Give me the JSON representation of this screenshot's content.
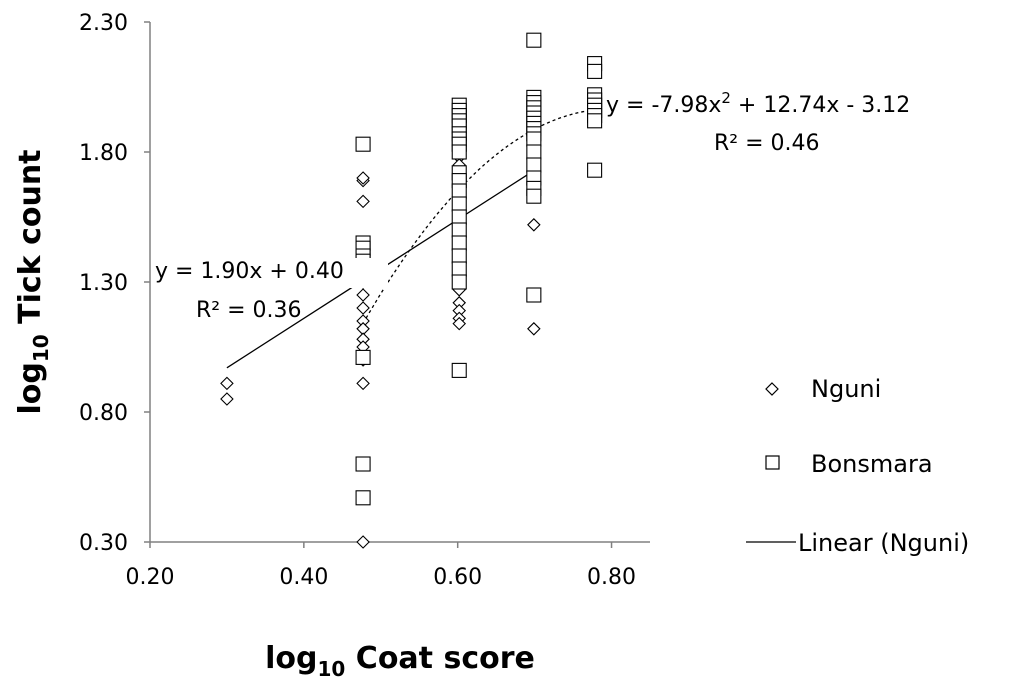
{
  "chart_data": {
    "type": "scatter",
    "title": "",
    "xlabel": {
      "base": "log",
      "sub": "10",
      "rest": " Coat score"
    },
    "ylabel": {
      "base": "log",
      "sub": "10",
      "rest": " Tick count"
    },
    "xlim": [
      0.2,
      0.85
    ],
    "ylim": [
      0.3,
      2.3
    ],
    "x_ticks": [
      "0.20",
      "0.40",
      "0.60",
      "0.80"
    ],
    "y_ticks": [
      "0.30",
      "0.80",
      "1.30",
      "1.80",
      "2.30"
    ],
    "legend_position": "right",
    "series": [
      {
        "name": "Nguni",
        "marker": "diamond",
        "points": [
          [
            0.3,
            0.91
          ],
          [
            0.3,
            0.85
          ],
          [
            0.477,
            1.69
          ],
          [
            0.477,
            1.7
          ],
          [
            0.477,
            1.61
          ],
          [
            0.477,
            1.42
          ],
          [
            0.477,
            1.4
          ],
          [
            0.477,
            1.38
          ],
          [
            0.477,
            1.36
          ],
          [
            0.477,
            1.35
          ],
          [
            0.477,
            1.34
          ],
          [
            0.477,
            1.33
          ],
          [
            0.477,
            1.32
          ],
          [
            0.477,
            1.3
          ],
          [
            0.477,
            1.25
          ],
          [
            0.477,
            1.2
          ],
          [
            0.477,
            1.15
          ],
          [
            0.477,
            1.12
          ],
          [
            0.477,
            1.08
          ],
          [
            0.477,
            1.05
          ],
          [
            0.477,
            1.0
          ],
          [
            0.477,
            0.91
          ],
          [
            0.477,
            0.3
          ],
          [
            0.602,
            1.78
          ],
          [
            0.602,
            1.75
          ],
          [
            0.602,
            1.72
          ],
          [
            0.602,
            1.7
          ],
          [
            0.602,
            1.66
          ],
          [
            0.602,
            1.62
          ],
          [
            0.602,
            1.58
          ],
          [
            0.602,
            1.56
          ],
          [
            0.602,
            1.52
          ],
          [
            0.602,
            1.48
          ],
          [
            0.602,
            1.45
          ],
          [
            0.602,
            1.42
          ],
          [
            0.602,
            1.38
          ],
          [
            0.602,
            1.35
          ],
          [
            0.602,
            1.3
          ],
          [
            0.602,
            1.27
          ],
          [
            0.602,
            1.22
          ],
          [
            0.602,
            1.19
          ],
          [
            0.602,
            1.16
          ],
          [
            0.602,
            1.14
          ],
          [
            0.699,
            1.85
          ],
          [
            0.699,
            1.8
          ],
          [
            0.699,
            1.77
          ],
          [
            0.699,
            1.75
          ],
          [
            0.699,
            1.72
          ],
          [
            0.699,
            1.7
          ],
          [
            0.699,
            1.67
          ],
          [
            0.699,
            1.52
          ],
          [
            0.699,
            1.12
          ]
        ]
      },
      {
        "name": "Bonsmara",
        "marker": "square",
        "points": [
          [
            0.477,
            1.83
          ],
          [
            0.477,
            1.45
          ],
          [
            0.477,
            1.43
          ],
          [
            0.477,
            1.4
          ],
          [
            0.477,
            1.38
          ],
          [
            0.477,
            1.01
          ],
          [
            0.477,
            0.6
          ],
          [
            0.477,
            0.47
          ],
          [
            0.602,
            1.98
          ],
          [
            0.602,
            1.96
          ],
          [
            0.602,
            1.94
          ],
          [
            0.602,
            1.92
          ],
          [
            0.602,
            1.9
          ],
          [
            0.602,
            1.87
          ],
          [
            0.602,
            1.85
          ],
          [
            0.602,
            1.83
          ],
          [
            0.602,
            1.8
          ],
          [
            0.602,
            1.72
          ],
          [
            0.602,
            1.69
          ],
          [
            0.602,
            1.65
          ],
          [
            0.602,
            1.6
          ],
          [
            0.602,
            1.55
          ],
          [
            0.602,
            1.5
          ],
          [
            0.602,
            1.45
          ],
          [
            0.602,
            1.4
          ],
          [
            0.602,
            1.35
          ],
          [
            0.602,
            1.3
          ],
          [
            0.602,
            0.96
          ],
          [
            0.699,
            2.23
          ],
          [
            0.699,
            2.01
          ],
          [
            0.699,
            1.99
          ],
          [
            0.699,
            1.97
          ],
          [
            0.699,
            1.95
          ],
          [
            0.699,
            1.93
          ],
          [
            0.699,
            1.91
          ],
          [
            0.699,
            1.89
          ],
          [
            0.699,
            1.87
          ],
          [
            0.699,
            1.85
          ],
          [
            0.699,
            1.8
          ],
          [
            0.699,
            1.75
          ],
          [
            0.699,
            1.7
          ],
          [
            0.699,
            1.66
          ],
          [
            0.699,
            1.63
          ],
          [
            0.699,
            1.25
          ],
          [
            0.778,
            2.14
          ],
          [
            0.778,
            2.11
          ],
          [
            0.778,
            2.02
          ],
          [
            0.778,
            2.0
          ],
          [
            0.778,
            1.98
          ],
          [
            0.778,
            1.96
          ],
          [
            0.778,
            1.94
          ],
          [
            0.778,
            1.92
          ],
          [
            0.778,
            1.73
          ]
        ]
      }
    ],
    "trendlines": [
      {
        "name": "Linear (Nguni)",
        "type": "linear",
        "style": "solid",
        "coeffs": [
          1.9,
          0.4
        ],
        "x_range": [
          0.3,
          0.699
        ],
        "equation": "y = 1.90x + 0.40",
        "r2": "R² = 0.36"
      },
      {
        "name": "",
        "type": "polynomial",
        "style": "dashed",
        "coeffs": [
          -7.98,
          12.74,
          -3.12
        ],
        "x_range": [
          0.477,
          0.778
        ],
        "equation_parts": [
          "y = -7.98x",
          "2",
          " + 12.74x - 3.12"
        ],
        "r2": "R² = 0.46"
      }
    ],
    "legend": [
      "Nguni",
      "Bonsmara",
      "Linear (Nguni)"
    ]
  }
}
